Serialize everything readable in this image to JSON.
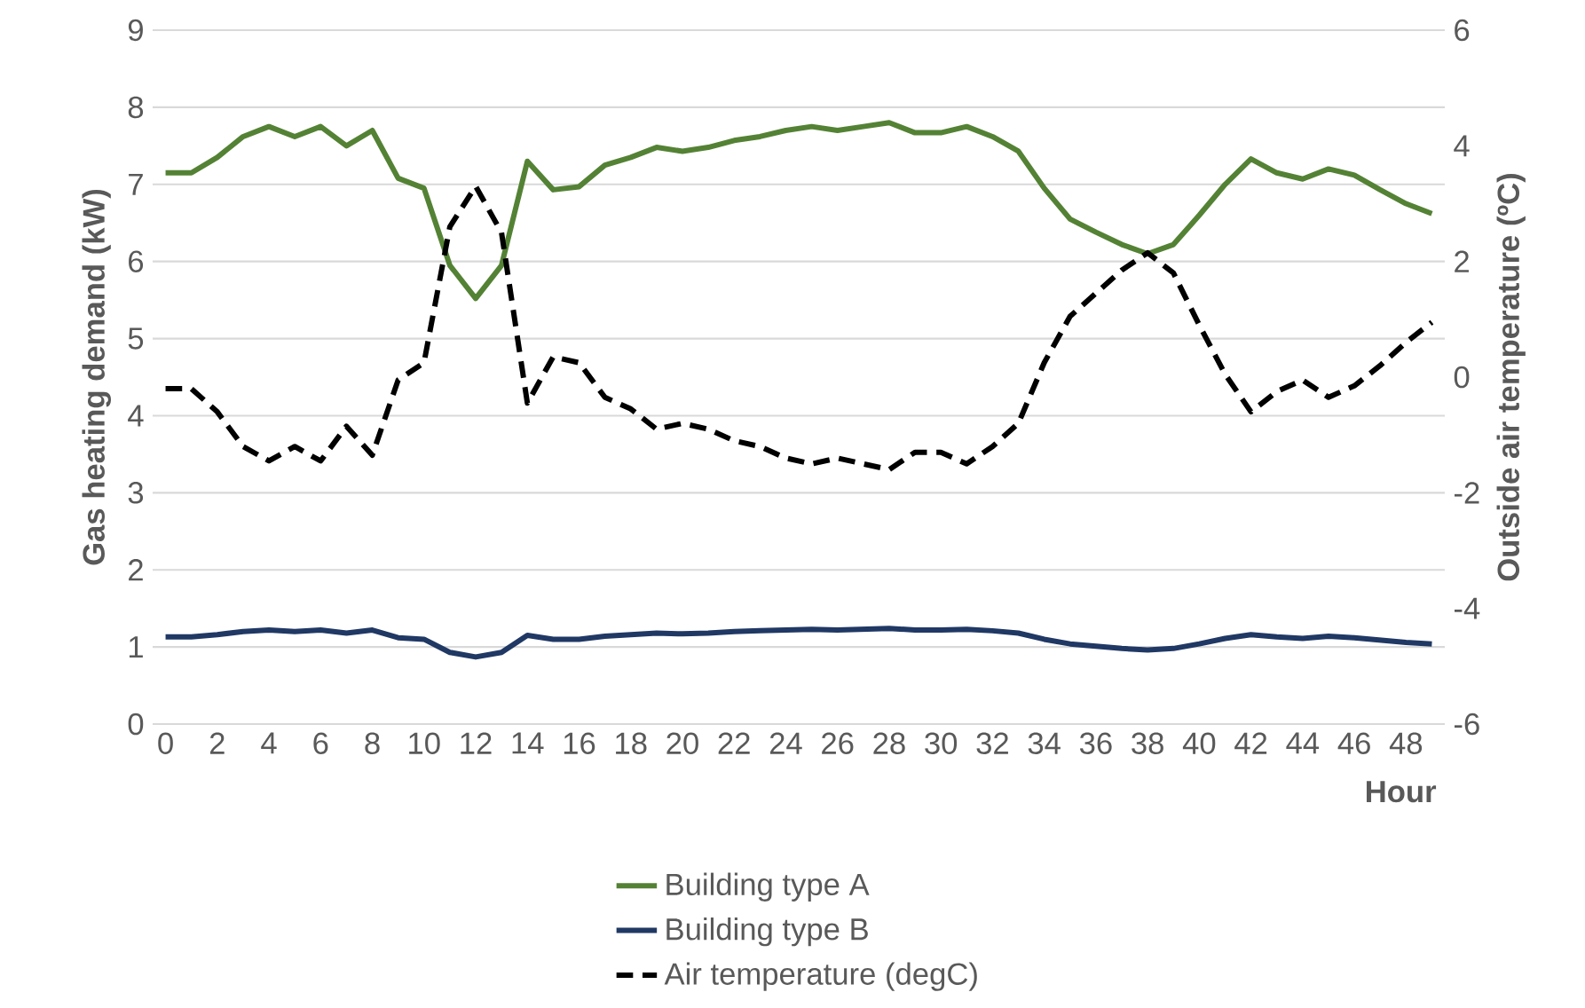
{
  "chart_data": {
    "type": "line",
    "xlabel": "Hour",
    "ylabel": "Gas heating demand (kW)",
    "y2label": "Outside air temperature (ºC)",
    "x": [
      0,
      1,
      2,
      3,
      4,
      5,
      6,
      7,
      8,
      9,
      10,
      11,
      12,
      13,
      14,
      15,
      16,
      17,
      18,
      19,
      20,
      21,
      22,
      23,
      24,
      25,
      26,
      27,
      28,
      29,
      30,
      31,
      32,
      33,
      34,
      35,
      36,
      37,
      38,
      39,
      40,
      41,
      42,
      43,
      44,
      45,
      46,
      47,
      48,
      49
    ],
    "xlim": [
      -0.5,
      49.5
    ],
    "xticks": [
      0,
      2,
      4,
      6,
      8,
      10,
      12,
      14,
      16,
      18,
      20,
      22,
      24,
      26,
      28,
      30,
      32,
      34,
      36,
      38,
      40,
      42,
      44,
      46,
      48
    ],
    "ylim": [
      0,
      9
    ],
    "yticks": [
      0,
      1,
      2,
      3,
      4,
      5,
      6,
      7,
      8,
      9
    ],
    "y2lim": [
      -6,
      6
    ],
    "y2ticks": [
      -6,
      -4,
      -2,
      0,
      2,
      4,
      6
    ],
    "grid": "y",
    "legend": "bottom",
    "marker": "none",
    "series": [
      {
        "name": "Building type A",
        "color": "#548235",
        "line_style": "solid",
        "values": [
          7.15,
          7.15,
          7.35,
          7.62,
          7.75,
          7.62,
          7.75,
          7.5,
          7.7,
          7.08,
          6.95,
          5.95,
          5.52,
          5.95,
          7.3,
          6.93,
          6.97,
          7.25,
          7.35,
          7.48,
          7.43,
          7.48,
          7.57,
          7.62,
          7.7,
          7.75,
          7.7,
          7.75,
          7.8,
          7.67,
          7.67,
          7.75,
          7.62,
          7.43,
          6.95,
          6.55,
          6.38,
          6.22,
          6.1,
          6.22,
          6.6,
          7.0,
          7.33,
          7.15,
          7.07,
          7.2,
          7.12,
          6.93,
          6.75,
          6.62
        ]
      },
      {
        "name": "Building type B",
        "color": "#203864",
        "line_style": "solid",
        "values": [
          1.13,
          1.13,
          1.16,
          1.2,
          1.22,
          1.2,
          1.22,
          1.18,
          1.22,
          1.12,
          1.1,
          0.93,
          0.87,
          0.93,
          1.15,
          1.1,
          1.1,
          1.14,
          1.16,
          1.18,
          1.17,
          1.18,
          1.2,
          1.21,
          1.22,
          1.23,
          1.22,
          1.23,
          1.24,
          1.22,
          1.22,
          1.23,
          1.21,
          1.18,
          1.1,
          1.04,
          1.01,
          0.98,
          0.96,
          0.98,
          1.04,
          1.11,
          1.16,
          1.13,
          1.11,
          1.14,
          1.12,
          1.09,
          1.06,
          1.04
        ]
      },
      {
        "name": "Air temperature (degC)",
        "color": "#000000",
        "line_style": "dashed",
        "axis": "y2",
        "values": [
          -0.2,
          -0.2,
          -0.6,
          -1.2,
          -1.45,
          -1.2,
          -1.45,
          -0.85,
          -1.35,
          -0.05,
          0.25,
          2.6,
          3.3,
          2.5,
          -0.45,
          0.35,
          0.25,
          -0.35,
          -0.55,
          -0.9,
          -0.8,
          -0.9,
          -1.1,
          -1.2,
          -1.4,
          -1.5,
          -1.4,
          -1.5,
          -1.6,
          -1.3,
          -1.3,
          -1.5,
          -1.2,
          -0.8,
          0.25,
          1.05,
          1.45,
          1.85,
          2.15,
          1.8,
          0.9,
          0.05,
          -0.6,
          -0.25,
          -0.05,
          -0.35,
          -0.15,
          0.2,
          0.6,
          0.95
        ]
      }
    ]
  }
}
